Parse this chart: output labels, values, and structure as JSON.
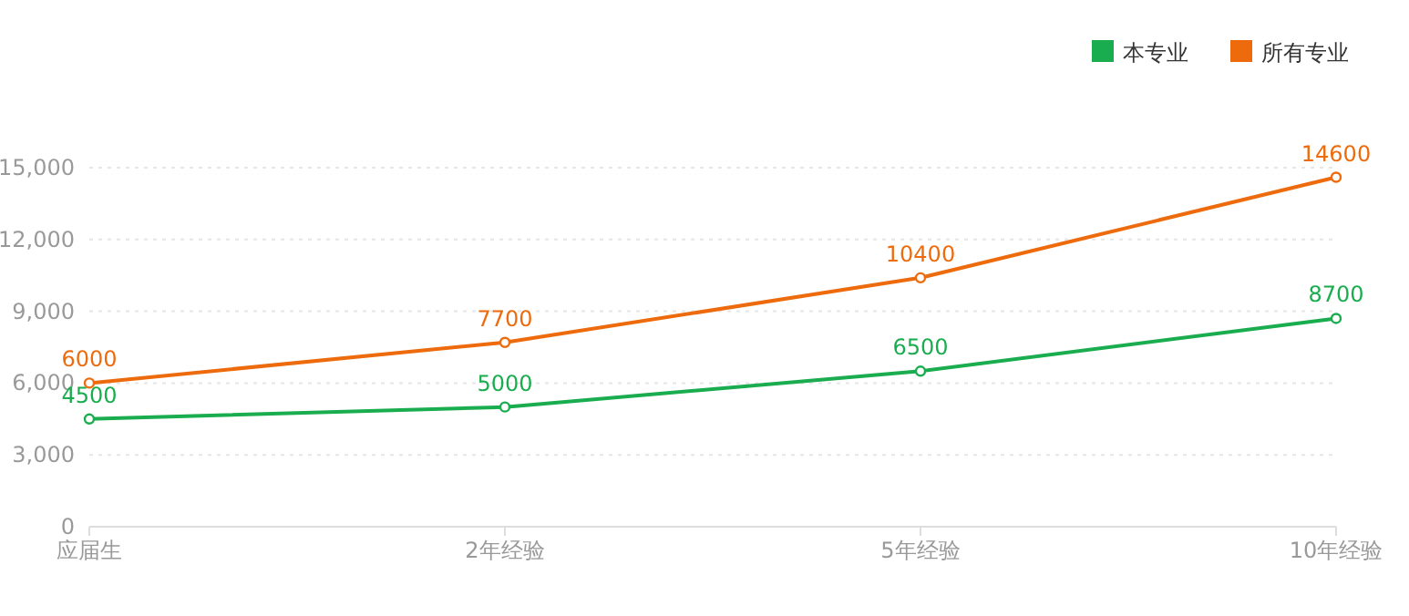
{
  "chart_data": {
    "type": "line",
    "categories": [
      "应届生",
      "2年经验",
      "5年经验",
      "10年经验"
    ],
    "series": [
      {
        "name": "本专业",
        "color": "#1aad4f",
        "values": [
          4500,
          5000,
          6500,
          8700
        ]
      },
      {
        "name": "所有专业",
        "color": "#ed6b0c",
        "values": [
          6000,
          7700,
          10400,
          14600
        ]
      }
    ],
    "ylim": [
      0,
      15000
    ],
    "yticks": [
      {
        "value": 0,
        "label": "0"
      },
      {
        "value": 3000,
        "label": "3,000"
      },
      {
        "value": 6000,
        "label": "6,000"
      },
      {
        "value": 9000,
        "label": "9,000"
      },
      {
        "value": 12000,
        "label": "12,000"
      },
      {
        "value": 15000,
        "label": "15,000"
      }
    ],
    "grid": "y",
    "legend": "top right",
    "marker": "circle",
    "line_style": "solid",
    "data_labels": true
  }
}
